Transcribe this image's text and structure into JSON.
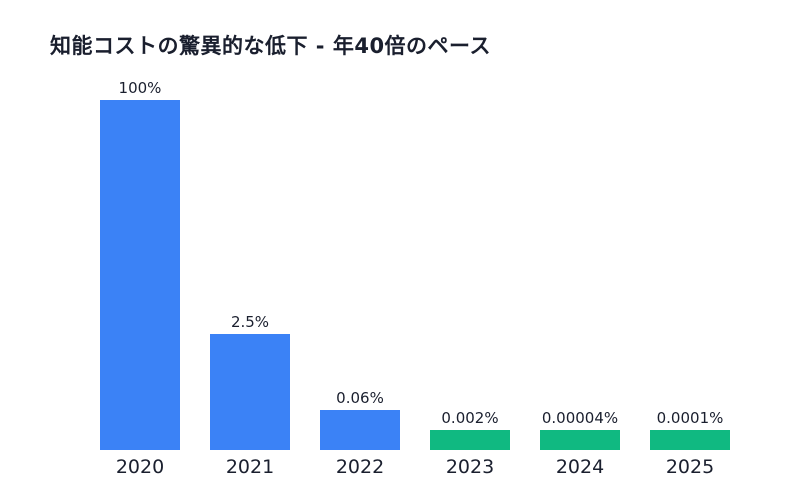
{
  "chart_data": {
    "type": "bar",
    "title": "知能コストの驚異的な低下 - 年40倍のペース",
    "categories": [
      "2020",
      "2021",
      "2022",
      "2023",
      "2024",
      "2025"
    ],
    "values": [
      100,
      2.5,
      0.06,
      0.002,
      4e-05,
      0.0001
    ],
    "value_labels": [
      "100%",
      "2.5%",
      "0.06%",
      "0.002%",
      "0.00004%",
      "0.0001%"
    ],
    "unit": "%",
    "colors": [
      "#3b82f6",
      "#3b82f6",
      "#3b82f6",
      "#10b981",
      "#10b981",
      "#10b981"
    ],
    "grid": false,
    "legend": "none"
  }
}
